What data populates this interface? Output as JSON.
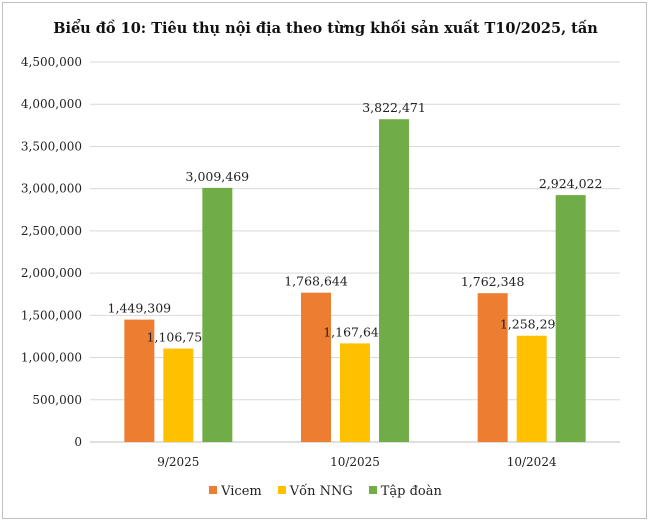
{
  "chart_data": {
    "type": "bar",
    "title": "Biểu đồ 10: Tiêu thụ nội địa theo từng khối sản xuất T10/2025, tấn",
    "categories": [
      "9/2025",
      "10/2025",
      "10/2024"
    ],
    "series": [
      {
        "name": "Vicem",
        "color": "#ED7D31",
        "values": [
          1449309,
          1768644,
          1762348
        ],
        "labels": [
          "1,449,309",
          "1,768,644",
          "1,762,348"
        ]
      },
      {
        "name": "Vốn NNG",
        "color": "#FFC000",
        "values": [
          1106755,
          1167647,
          1258295
        ],
        "labels": [
          "1,106,755",
          "1,167,647",
          "1,258,295"
        ]
      },
      {
        "name": "Tập đoàn",
        "color": "#70AD47",
        "values": [
          3009469,
          3822471,
          2924022
        ],
        "labels": [
          "3,009,469",
          "3,822,471",
          "2,924,022"
        ]
      }
    ],
    "ylim": [
      0,
      4500000
    ],
    "yticks": [
      "0",
      "500,000",
      "1,000,000",
      "1,500,000",
      "2,000,000",
      "2,500,000",
      "3,000,000",
      "3,500,000",
      "4,000,000",
      "4,500,000"
    ],
    "grid": true,
    "legend_position": "bottom"
  }
}
